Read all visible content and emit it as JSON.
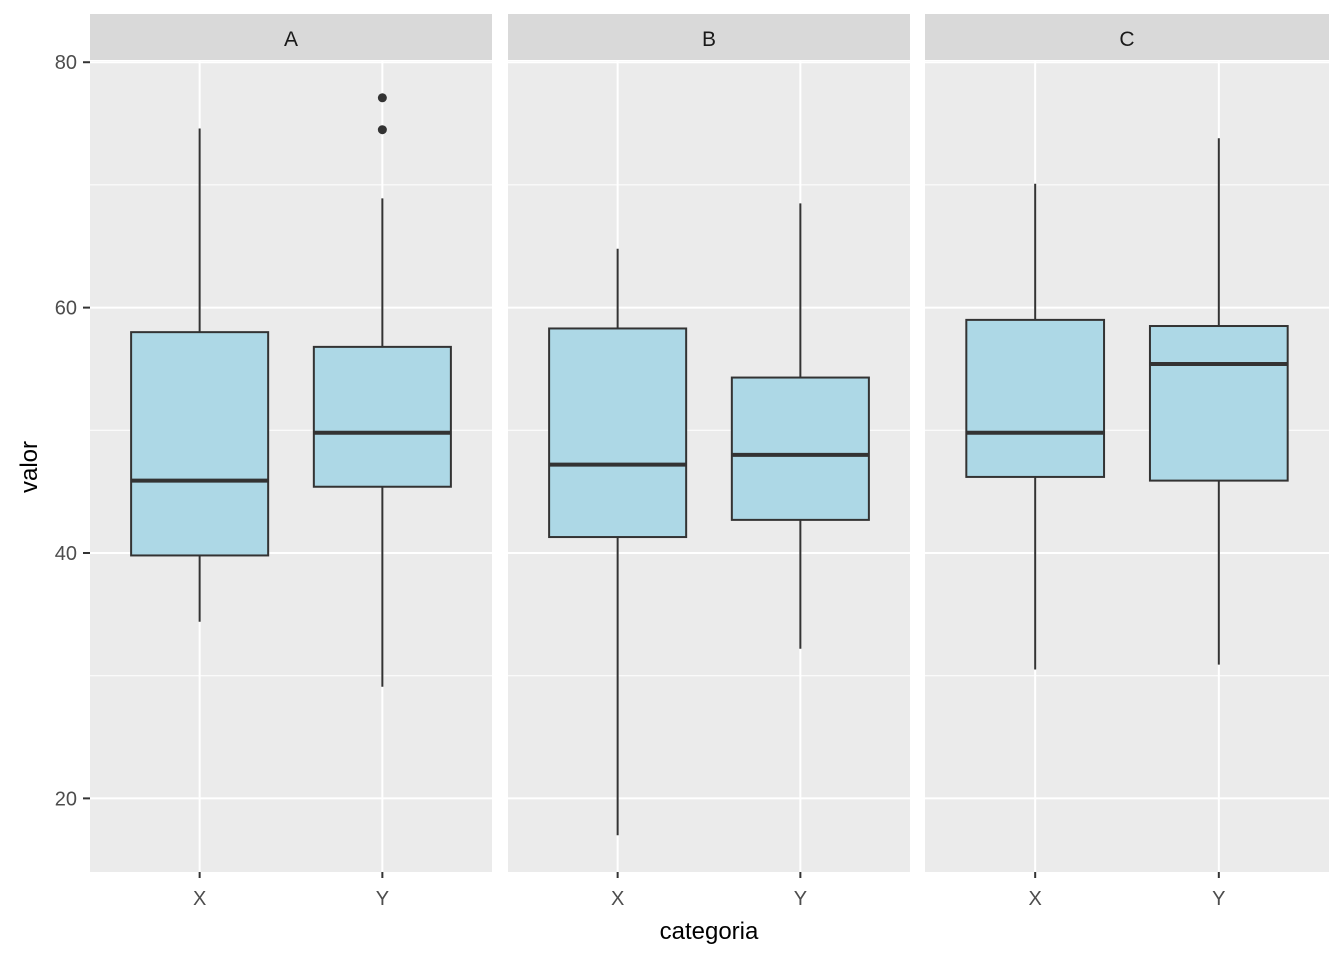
{
  "chart_data": {
    "type": "boxplot",
    "title": "",
    "xlabel": "categoria",
    "ylabel": "valor",
    "ylim": [
      14.0,
      80.1
    ],
    "yticks": [
      20,
      40,
      60,
      80
    ],
    "ytick_labels": [
      "20",
      "40",
      "60",
      "80"
    ],
    "categories": [
      "X",
      "Y"
    ],
    "grid": true,
    "legend": "none",
    "colors": {
      "fill": "#ADD8E6",
      "panel": "#EBEBEB",
      "strip": "#D9D9D9",
      "line": "#333333",
      "grid": "#FFFFFF"
    },
    "facets": [
      {
        "label": "A",
        "boxes": [
          {
            "category": "X",
            "lower_whisker": 34.4,
            "q1": 39.8,
            "median": 45.9,
            "q3": 58.0,
            "upper_whisker": 74.6,
            "outliers": []
          },
          {
            "category": "Y",
            "lower_whisker": 29.1,
            "q1": 45.4,
            "median": 49.8,
            "q3": 56.8,
            "upper_whisker": 68.9,
            "outliers": [
              77.1,
              74.5
            ]
          }
        ]
      },
      {
        "label": "B",
        "boxes": [
          {
            "category": "X",
            "lower_whisker": 17.0,
            "q1": 41.3,
            "median": 47.2,
            "q3": 58.3,
            "upper_whisker": 64.8,
            "outliers": []
          },
          {
            "category": "Y",
            "lower_whisker": 32.2,
            "q1": 42.7,
            "median": 48.0,
            "q3": 54.3,
            "upper_whisker": 68.5,
            "outliers": []
          }
        ]
      },
      {
        "label": "C",
        "boxes": [
          {
            "category": "X",
            "lower_whisker": 30.5,
            "q1": 46.2,
            "median": 49.8,
            "q3": 59.0,
            "upper_whisker": 70.1,
            "outliers": []
          },
          {
            "category": "Y",
            "lower_whisker": 30.9,
            "q1": 45.9,
            "median": 55.4,
            "q3": 58.5,
            "upper_whisker": 73.8,
            "outliers": []
          }
        ]
      }
    ]
  }
}
